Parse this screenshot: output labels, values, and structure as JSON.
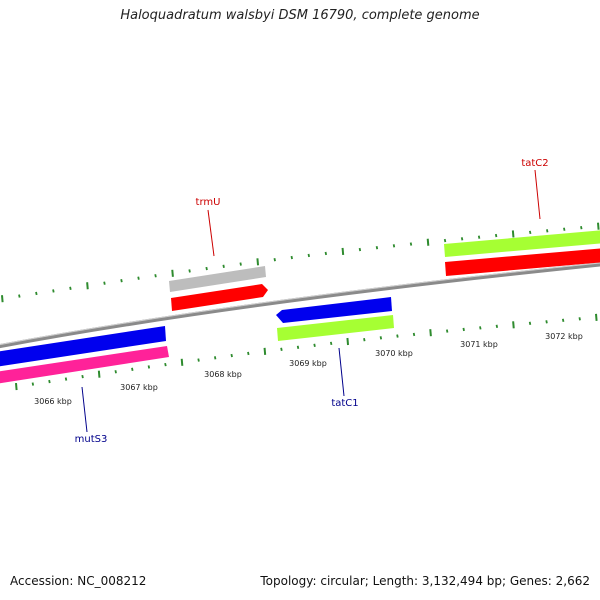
{
  "title": "Haloquadratum walsbyi DSM 16790, complete genome",
  "accession": "Accession: NC_008212",
  "summary": "Topology: circular; Length: 3,132,494 bp; Genes: 2,662",
  "axis": {
    "unit_labels": [
      "3066 kbp",
      "3067 kbp",
      "3068 kbp",
      "3069 kbp",
      "3070 kbp",
      "3071 kbp",
      "3072 kbp"
    ]
  },
  "genes": [
    {
      "name": "trmU",
      "strand": "forward",
      "color": "#cc0000"
    },
    {
      "name": "tatC2",
      "strand": "forward",
      "color": "#cc0000"
    },
    {
      "name": "tatC1",
      "strand": "reverse",
      "color": "#00008b"
    },
    {
      "name": "mutS3",
      "strand": "reverse",
      "color": "#00008b"
    }
  ],
  "colors": {
    "forward_gene": "#ff0000",
    "reverse_gene": "#0000ee",
    "forward_other": "#a6ff33",
    "reverse_other": "#ff2299",
    "gray_feature": "#bdbdbd",
    "backbone": "#8a8a8a",
    "ticks": "#2e8b2e"
  }
}
